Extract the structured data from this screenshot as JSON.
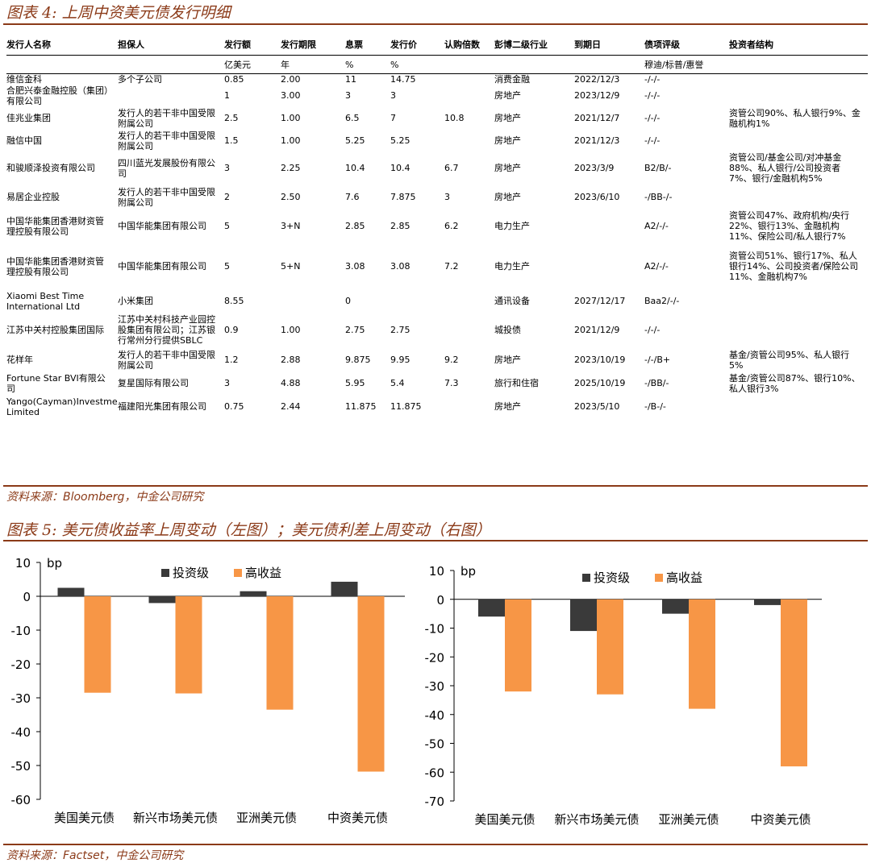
{
  "fig4": {
    "title": "图表 4: 上周中资美元债发行明细",
    "source": "资料来源：Bloomberg，中金公司研究"
  },
  "table": {
    "headers": [
      "发行人名称",
      "担保人",
      "发行额",
      "发行期限",
      "息票",
      "发行价",
      "认购倍数",
      "彭博二级行业",
      "到期日",
      "债项评级",
      "投资者结构"
    ],
    "units": [
      "",
      "",
      "亿美元",
      "年",
      "%",
      "%",
      "",
      "",
      "",
      "穆迪/标普/惠誉",
      ""
    ],
    "rows": [
      [
        "维信金科",
        "多个子公司",
        "0.85",
        "2.00",
        "11",
        "14.75",
        "",
        "消费金融",
        "2022/12/3",
        "-/-/-",
        ""
      ],
      [
        "合肥兴泰金融控股（集团）有限公司",
        "",
        "1",
        "3.00",
        "3",
        "3",
        "",
        "房地产",
        "2023/12/9",
        "-/-/-",
        ""
      ],
      [
        "佳兆业集团",
        "发行人的若干非中国受限附属公司",
        "2.5",
        "1.00",
        "6.5",
        "7",
        "10.8",
        "房地产",
        "2021/12/7",
        "-/-/-",
        "资管公司90%、私人银行9%、金融机构1%"
      ],
      [
        "融信中国",
        "发行人的若干非中国受限附属公司",
        "1.5",
        "1.00",
        "5.25",
        "5.25",
        "",
        "房地产",
        "2021/12/3",
        "-/-/-",
        ""
      ],
      [
        "和骏顺泽投资有限公司",
        "四川蓝光发展股份有限公司",
        "3",
        "2.25",
        "10.4",
        "10.4",
        "6.7",
        "房地产",
        "2023/3/9",
        "B2/B/-",
        "资管公司/基金公司/对冲基金88%、私人银行/公司投资者7%、银行/金融机构5%"
      ],
      [
        "易居企业控股",
        "发行人的若干非中国受限附属公司",
        "2",
        "2.50",
        "7.6",
        "7.875",
        "3",
        "房地产",
        "2023/6/10",
        "-/BB-/-",
        ""
      ],
      [
        "中国华能集团香港财资管理控股有限公司",
        "中国华能集团有限公司",
        "5",
        "3+N",
        "2.85",
        "2.85",
        "6.2",
        "电力生产",
        "",
        "A2/-/-",
        "资管公司47%、政府机构/央行22%、银行13%、金融机构11%、保险公司/私人银行7%"
      ],
      [
        "中国华能集团香港财资管理控股有限公司",
        "中国华能集团有限公司",
        "5",
        "5+N",
        "3.08",
        "3.08",
        "7.2",
        "电力生产",
        "",
        "A2/-/-",
        "资管公司51%、银行17%、私人银行14%、公司投资者/保险公司11%、金融机构7%"
      ],
      [
        "Xiaomi Best Time International Ltd",
        "小米集团",
        "8.55",
        "",
        "0",
        "",
        "",
        "通讯设备",
        "2027/12/17",
        "Baa2/-/-",
        ""
      ],
      [
        "江苏中关村控股集团国际",
        "江苏中关村科技产业园控股集团有限公司；江苏银行常州分行提供SBLC",
        "0.9",
        "1.00",
        "2.75",
        "2.75",
        "",
        "城投债",
        "2021/12/9",
        "-/-/-",
        ""
      ],
      [
        "花样年",
        "发行人的若干非中国受限附属公司",
        "1.2",
        "2.88",
        "9.875",
        "9.95",
        "9.2",
        "房地产",
        "2023/10/19",
        "-/-/B+",
        "基金/资管公司95%、私人银行5%"
      ],
      [
        "Fortune Star BVI有限公司",
        "复星国际有限公司",
        "3",
        "4.88",
        "5.95",
        "5.4",
        "7.3",
        "旅行和住宿",
        "2025/10/19",
        "-/BB/-",
        "基金/资管公司87%、银行10%、私人银行3%"
      ],
      [
        "Yango(Cayman)Investment Limited",
        "福建阳光集团有限公司",
        "0.75",
        "2.44",
        "11.875",
        "11.875",
        "",
        "房地产",
        "2023/5/10",
        "-/B-/-",
        ""
      ]
    ]
  },
  "fig5": {
    "title": "图表 5: 美元债收益率上周变动（左图）；美元债利差上周变动（右图）",
    "source": "资料来源：Factset，中金公司研究"
  },
  "colors": {
    "investment_grade": "#3a3a3a",
    "high_yield": "#f79646",
    "accent": "#8b3a18"
  },
  "chart_data": [
    {
      "type": "bar",
      "unit_label": "bp",
      "categories": [
        "美国美元债",
        "新兴市场美元债",
        "亚洲美元债",
        "中资美元债"
      ],
      "series": [
        {
          "name": "投资级",
          "values": [
            2.5,
            -2,
            1.5,
            4.3
          ]
        },
        {
          "name": "高收益",
          "values": [
            -28.5,
            -28.7,
            -33.5,
            -51.8
          ]
        }
      ],
      "ylim": [
        -60,
        10
      ],
      "yticks": [
        10,
        0,
        -10,
        -20,
        -30,
        -40,
        -50,
        -60
      ],
      "legend": "top"
    },
    {
      "type": "bar",
      "unit_label": "bp",
      "categories": [
        "美国美元债",
        "新兴市场美元债",
        "亚洲美元债",
        "中资美元债"
      ],
      "series": [
        {
          "name": "投资级",
          "values": [
            -6,
            -11,
            -5,
            -2
          ]
        },
        {
          "name": "高收益",
          "values": [
            -32,
            -33,
            -38,
            -58
          ]
        }
      ],
      "ylim": [
        -70,
        10
      ],
      "yticks": [
        10,
        0,
        -10,
        -20,
        -30,
        -40,
        -50,
        -60,
        -70
      ],
      "legend": "top"
    }
  ]
}
